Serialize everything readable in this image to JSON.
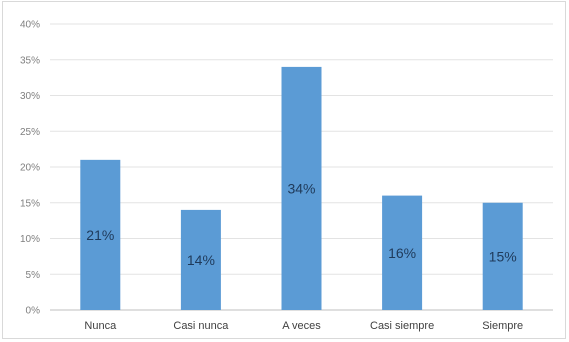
{
  "chart_data": {
    "type": "bar",
    "title": "",
    "xlabel": "",
    "ylabel": "",
    "categories": [
      "Nunca",
      "Casi nunca",
      "A veces",
      "Casi siempre",
      "Siempre"
    ],
    "values": [
      21,
      14,
      34,
      16,
      15
    ],
    "data_labels": [
      "21%",
      "14%",
      "34%",
      "16%",
      "15%"
    ],
    "ylim": [
      0,
      40
    ],
    "yticks": [
      0,
      5,
      10,
      15,
      20,
      25,
      30,
      35,
      40
    ],
    "ytick_labels": [
      "0%",
      "5%",
      "10%",
      "15%",
      "20%",
      "25%",
      "30%",
      "35%",
      "40%"
    ],
    "grid": true,
    "legend": "none",
    "bar_color": "#5b9bd5"
  }
}
